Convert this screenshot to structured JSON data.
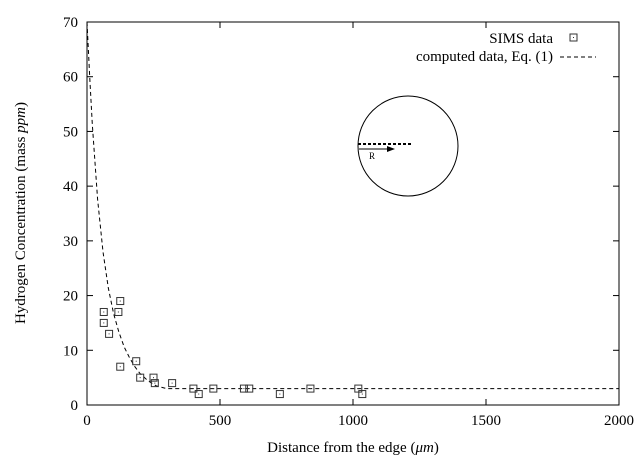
{
  "chart_data": {
    "type": "scatter",
    "title": "",
    "xlabel": "Distance from the edge (μm)",
    "ylabel": "Hydrogen Concentration (mass ppm)",
    "xlim": [
      0,
      2000
    ],
    "ylim": [
      0,
      70
    ],
    "xticks": [
      "0",
      "500",
      "1000",
      "1500",
      "2000"
    ],
    "yticks": [
      "0",
      "10",
      "20",
      "30",
      "40",
      "50",
      "60",
      "70"
    ],
    "grid": false,
    "legend_position": "top-right",
    "series": [
      {
        "name": "SIMS data",
        "kind": "points",
        "marker": "square-dot",
        "color": "#333333",
        "points": [
          [
            63,
            17
          ],
          [
            63,
            15
          ],
          [
            83,
            13
          ],
          [
            118,
            17
          ],
          [
            125,
            19
          ],
          [
            125,
            7
          ],
          [
            185,
            8
          ],
          [
            200,
            5
          ],
          [
            250,
            5
          ],
          [
            255,
            4
          ],
          [
            320,
            4
          ],
          [
            400,
            3
          ],
          [
            420,
            2
          ],
          [
            475,
            3
          ],
          [
            590,
            3
          ],
          [
            610,
            3
          ],
          [
            725,
            2
          ],
          [
            840,
            3
          ],
          [
            1020,
            3
          ],
          [
            1035,
            2
          ]
        ]
      },
      {
        "name": "computed data, Eq. (1)",
        "kind": "curve",
        "style": "dashed",
        "color": "#000000",
        "x": [
          0,
          10,
          20,
          40,
          60,
          80,
          100,
          120,
          140,
          160,
          180,
          200,
          230,
          260,
          300,
          400,
          600,
          1000,
          1500,
          2000
        ],
        "y": [
          70,
          60,
          51.3,
          37.6,
          28.0,
          21.4,
          16.7,
          13.3,
          10.6,
          8.6,
          7.0,
          5.7,
          4.4,
          3.5,
          3.0,
          3.0,
          3.0,
          3.0,
          3.0,
          3.0
        ]
      }
    ],
    "inset": {
      "label": "R"
    }
  }
}
